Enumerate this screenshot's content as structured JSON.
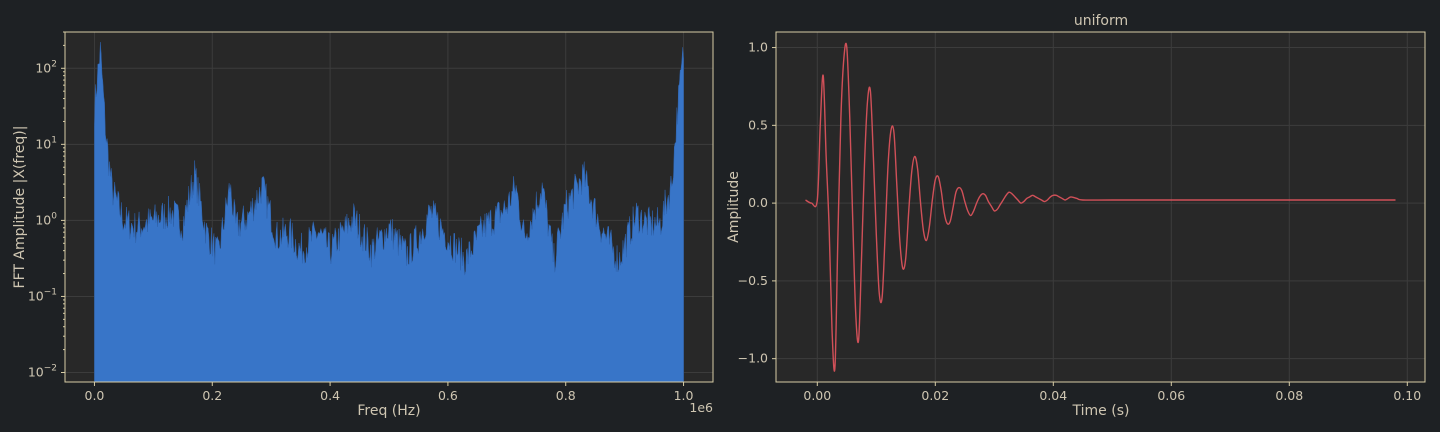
{
  "colors": {
    "figure_bg": "#1e2124",
    "axes_bg": "#282828",
    "spine": "#d8cda6",
    "text": "#cfc6b2",
    "grid": "#3c3c3c",
    "fft_fill": "#3875c8",
    "signal_line": "#d05058"
  },
  "chart_data": [
    {
      "type": "area",
      "title": "",
      "xlabel": "Freq (Hz)",
      "ylabel": "FFT Amplitude |X(freq)|",
      "x_offset_label": "1e6",
      "xscale": "linear",
      "yscale": "log",
      "xlim": [
        -0.05,
        1.05
      ],
      "ylim": [
        0.0075,
        300
      ],
      "grid": true,
      "x_ticks": [
        0.0,
        0.2,
        0.4,
        0.6,
        0.8,
        1.0
      ],
      "x_tick_labels": [
        "0.0",
        "0.2",
        "0.4",
        "0.6",
        "0.8",
        "1.0"
      ],
      "y_ticks": [
        0.01,
        0.1,
        1,
        10,
        100
      ],
      "y_tick_labels": [
        "10",
        "10",
        "10",
        "10",
        "10"
      ],
      "y_tick_exponents": [
        "−2",
        "−1",
        "0",
        "1",
        "2"
      ],
      "series": [
        {
          "x": [
            0.0,
            0.005,
            0.01,
            0.02,
            0.03,
            0.05,
            0.07,
            0.1,
            0.13,
            0.15,
            0.17,
            0.19,
            0.21,
            0.23,
            0.24,
            0.26,
            0.285,
            0.31,
            0.33,
            0.35,
            0.38,
            0.4,
            0.44,
            0.47,
            0.5,
            0.53,
            0.55,
            0.57,
            0.6,
            0.63,
            0.66,
            0.7,
            0.715,
            0.73,
            0.76,
            0.78,
            0.8,
            0.83,
            0.86,
            0.89,
            0.92,
            0.94,
            0.96,
            0.98,
            0.99,
            1.0
          ],
          "values": [
            30,
            80,
            170,
            12,
            2.5,
            1.0,
            0.8,
            1.0,
            1.3,
            0.9,
            4.0,
            0.7,
            0.35,
            2.8,
            0.8,
            1.1,
            2.8,
            0.6,
            0.7,
            0.4,
            0.7,
            0.4,
            1.1,
            0.4,
            0.8,
            0.35,
            0.6,
            1.3,
            0.6,
            0.3,
            0.8,
            1.5,
            2.8,
            0.6,
            2.8,
            0.3,
            1.5,
            3.9,
            0.8,
            0.3,
            1.2,
            0.9,
            0.9,
            3.0,
            30,
            170
          ]
        }
      ]
    },
    {
      "type": "line",
      "title": "uniform",
      "xlabel": "Time (s)",
      "ylabel": "Amplitude",
      "xscale": "linear",
      "yscale": "linear",
      "xlim": [
        -0.007,
        0.103
      ],
      "ylim": [
        -1.15,
        1.1
      ],
      "grid": true,
      "x_ticks": [
        0.0,
        0.02,
        0.04,
        0.06,
        0.08,
        0.1
      ],
      "x_tick_labels": [
        "0.00",
        "0.02",
        "0.04",
        "0.06",
        "0.08",
        "0.10"
      ],
      "y_ticks": [
        -1.0,
        -0.5,
        0.0,
        0.5,
        1.0
      ],
      "y_tick_labels": [
        "−1.0",
        "−0.5",
        "0.0",
        "0.5",
        "1.0"
      ],
      "series": [
        {
          "x": [
            -0.002,
            -0.001,
            0.0,
            0.0005,
            0.001,
            0.0015,
            0.002,
            0.0025,
            0.003,
            0.0035,
            0.004,
            0.0045,
            0.005,
            0.0055,
            0.006,
            0.0065,
            0.007,
            0.0075,
            0.008,
            0.0085,
            0.009,
            0.0095,
            0.01,
            0.0105,
            0.011,
            0.0115,
            0.012,
            0.0125,
            0.013,
            0.0135,
            0.014,
            0.0145,
            0.015,
            0.0155,
            0.016,
            0.0165,
            0.017,
            0.0175,
            0.018,
            0.0185,
            0.019,
            0.0195,
            0.02,
            0.0205,
            0.021,
            0.0215,
            0.022,
            0.0225,
            0.023,
            0.0235,
            0.024,
            0.0245,
            0.025,
            0.0255,
            0.026,
            0.0265,
            0.027,
            0.0275,
            0.028,
            0.0285,
            0.029,
            0.0295,
            0.03,
            0.0305,
            0.031,
            0.0315,
            0.032,
            0.0325,
            0.033,
            0.0335,
            0.034,
            0.0345,
            0.035,
            0.0355,
            0.036,
            0.0365,
            0.037,
            0.0375,
            0.038,
            0.0385,
            0.039,
            0.0395,
            0.04,
            0.0405,
            0.041,
            0.0415,
            0.042,
            0.0425,
            0.043,
            0.044,
            0.045,
            0.05,
            0.06,
            0.07,
            0.08,
            0.09,
            0.098
          ],
          "values": [
            0.02,
            0.0,
            0.02,
            0.5,
            0.82,
            0.3,
            -0.15,
            -0.82,
            -1.05,
            -0.2,
            0.55,
            0.93,
            1.0,
            0.55,
            -0.1,
            -0.7,
            -0.88,
            -0.35,
            0.25,
            0.65,
            0.72,
            0.3,
            -0.2,
            -0.58,
            -0.6,
            -0.2,
            0.25,
            0.47,
            0.45,
            0.1,
            -0.25,
            -0.42,
            -0.35,
            -0.05,
            0.2,
            0.3,
            0.22,
            0.0,
            -0.18,
            -0.24,
            -0.15,
            0.02,
            0.15,
            0.17,
            0.08,
            -0.06,
            -0.13,
            -0.12,
            -0.03,
            0.07,
            0.1,
            0.08,
            0.01,
            -0.05,
            -0.08,
            -0.05,
            0.0,
            0.04,
            0.06,
            0.05,
            0.01,
            -0.02,
            -0.05,
            -0.04,
            -0.01,
            0.02,
            0.05,
            0.07,
            0.06,
            0.04,
            0.02,
            0.0,
            0.01,
            0.03,
            0.04,
            0.05,
            0.04,
            0.03,
            0.02,
            0.01,
            0.02,
            0.04,
            0.05,
            0.05,
            0.04,
            0.03,
            0.02,
            0.03,
            0.04,
            0.03,
            0.02,
            0.02,
            0.02,
            0.02,
            0.02,
            0.02,
            0.02
          ]
        }
      ]
    }
  ]
}
